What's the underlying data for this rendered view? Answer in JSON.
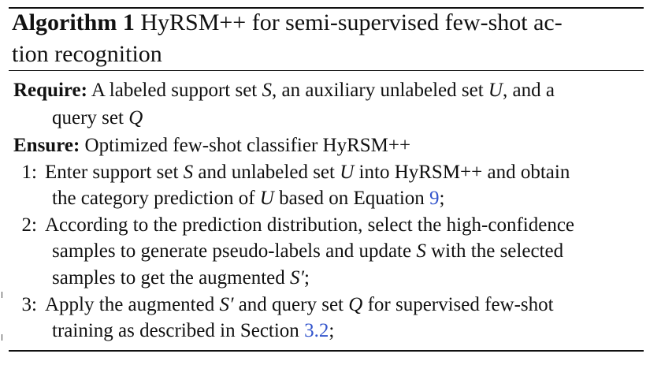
{
  "algorithm": {
    "label": "Algorithm 1",
    "title_line1": "HyRSM++ for semi-supervised few-shot ac-",
    "title_line2": "tion recognition"
  },
  "require": {
    "label": "Require:",
    "l1_a": "A labeled support set",
    "l1_S": "S",
    "l1_b": ", an auxiliary unlabeled set",
    "l1_U": "U",
    "l1_c": ", and a",
    "l2_a": "query set",
    "l2_Q": "Q"
  },
  "ensure": {
    "label": "Ensure:",
    "text": "Optimized few-shot classifier HyRSM++"
  },
  "steps": [
    {
      "num": "1:",
      "l1_a": "Enter support set",
      "l1_S": "S",
      "l1_b": "and unlabeled set",
      "l1_U": "U",
      "l1_c": "into HyRSM++ and obtain",
      "l2_a": "the category prediction of",
      "l2_U": "U",
      "l2_b": "based on Equation",
      "l2_ref": "9",
      "l2_end": ";"
    },
    {
      "num": "2:",
      "l1": "According to the prediction distribution, select the high-confidence",
      "l2_a": "samples to generate pseudo-labels and update",
      "l2_S": "S",
      "l2_b": "with the selected",
      "l3_a": "samples to get the augmented",
      "l3_S": "S′",
      "l3_end": ";"
    },
    {
      "num": "3:",
      "l1_a": "Apply the augmented",
      "l1_S": "S′",
      "l1_b": "and query set",
      "l1_Q": "Q",
      "l1_c": "for supervised few-shot",
      "l2_a": "training as described in Section",
      "l2_ref": "3.2",
      "l2_end": ";"
    }
  ]
}
